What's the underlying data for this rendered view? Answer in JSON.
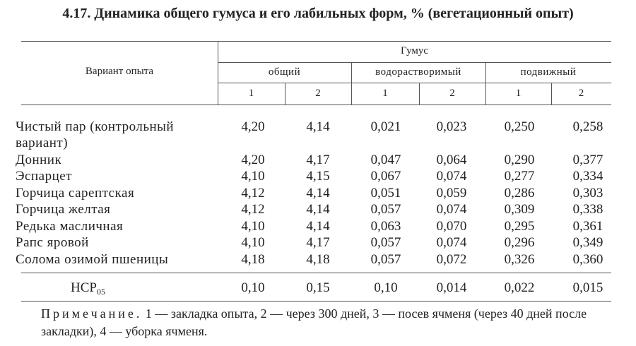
{
  "title": "4.17. Динамика общего гумуса и его лабильных форм, % (вегетационный опыт)",
  "table": {
    "stub_header": "Вариант опыта",
    "group_header": "Гумус",
    "subgroups": [
      "общий",
      "водорастворимый",
      "подвижный"
    ],
    "column_numbers": [
      "1",
      "2",
      "1",
      "2",
      "1",
      "2"
    ],
    "rows": [
      {
        "label": "Чистый пар (контрольный вариант)",
        "values": [
          "4,20",
          "4,14",
          "0,021",
          "0,023",
          "0,250",
          "0,258"
        ]
      },
      {
        "label": "Донник",
        "values": [
          "4,20",
          "4,17",
          "0,047",
          "0,064",
          "0,290",
          "0,377"
        ]
      },
      {
        "label": "Эспарцет",
        "values": [
          "4,10",
          "4,15",
          "0,067",
          "0,074",
          "0,277",
          "0,334"
        ]
      },
      {
        "label": "Горчица сарептская",
        "values": [
          "4,12",
          "4,14",
          "0,051",
          "0,059",
          "0,286",
          "0,303"
        ]
      },
      {
        "label": "Горчица желтая",
        "values": [
          "4,12",
          "4,14",
          "0,057",
          "0,074",
          "0,309",
          "0,338"
        ]
      },
      {
        "label": "Редька масличная",
        "values": [
          "4,10",
          "4,14",
          "0,063",
          "0,070",
          "0,295",
          "0,361"
        ]
      },
      {
        "label": "Рапс яровой",
        "values": [
          "4,10",
          "4,17",
          "0,057",
          "0,074",
          "0,296",
          "0,349"
        ]
      },
      {
        "label": "Солома озимой пшеницы",
        "values": [
          "4,18",
          "4,18",
          "0,057",
          "0,072",
          "0,326",
          "0,360"
        ]
      }
    ],
    "summary": {
      "label": "НСР",
      "subscript": "05",
      "values": [
        "0,10",
        "0,15",
        "0,10",
        "0,014",
        "0,022",
        "0,015"
      ]
    }
  },
  "note": {
    "label": "Примечание.",
    "text": "1 — закладка опыта, 2 — через 300 дней, 3 — посев ячменя (через 40 дней после закладки), 4 — уборка ячменя."
  }
}
